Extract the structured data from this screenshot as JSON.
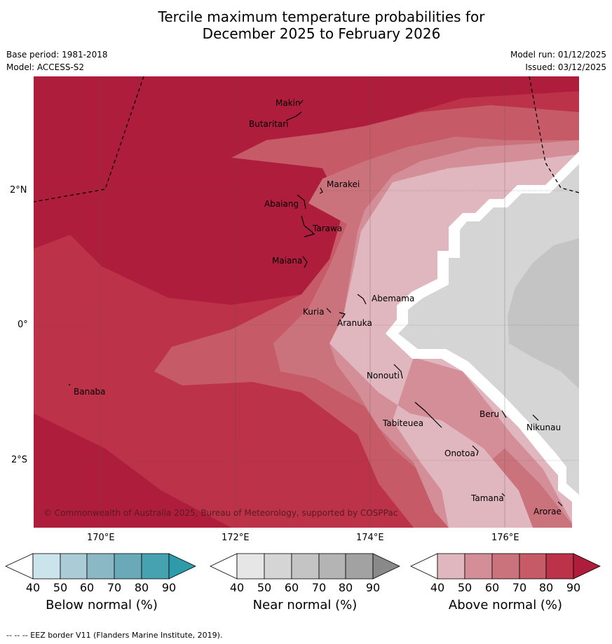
{
  "title_line1": "Tercile maximum temperature probabilities for",
  "title_line2": "December 2025 to February 2026",
  "base_period": "Base period: 1981-2018",
  "model": "Model: ACCESS-S2",
  "model_run": "Model run: 01/12/2025",
  "issued": "Issued: 03/12/2025",
  "lat_labels": [
    "2°N",
    "0°",
    "2°S"
  ],
  "lon_labels": [
    "170°E",
    "172°E",
    "174°E",
    "176°E"
  ],
  "places": [
    "Makin",
    "Butaritari",
    "Marakei",
    "Abaiang",
    "Tarawa",
    "Maiana",
    "Abemama",
    "Kuria",
    "Aranuka",
    "Nonouti",
    "Banaba",
    "Beru",
    "Tabiteuea",
    "Nikunau",
    "Onotoa",
    "Tamana",
    "Arorae"
  ],
  "copyright": "© Commonwealth of Australia 2025, Bureau of Meteorology, supported by COSPPac",
  "colorbars": [
    {
      "label": "Below normal (%)",
      "ticks": [
        "40",
        "50",
        "60",
        "70",
        "80",
        "90"
      ],
      "colors": [
        "#cbe3ea",
        "#a9ccd6",
        "#8ab8c5",
        "#6aa9b8",
        "#46a1b1",
        "#2e9bab"
      ]
    },
    {
      "label": "Near normal (%)",
      "ticks": [
        "40",
        "50",
        "60",
        "70",
        "80",
        "90"
      ],
      "colors": [
        "#e6e6e6",
        "#d5d5d5",
        "#c4c4c4",
        "#b4b4b4",
        "#a2a2a2",
        "#898989"
      ]
    },
    {
      "label": "Above normal (%)",
      "ticks": [
        "40",
        "50",
        "60",
        "70",
        "80",
        "90"
      ],
      "colors": [
        "#e1b7bf",
        "#d38e98",
        "#cb737c",
        "#c65b67",
        "#bb3249",
        "#ae1d3b"
      ]
    }
  ],
  "footer": "--  --  -- EEZ border V11 (Flanders Marine Institute, 2019)."
}
